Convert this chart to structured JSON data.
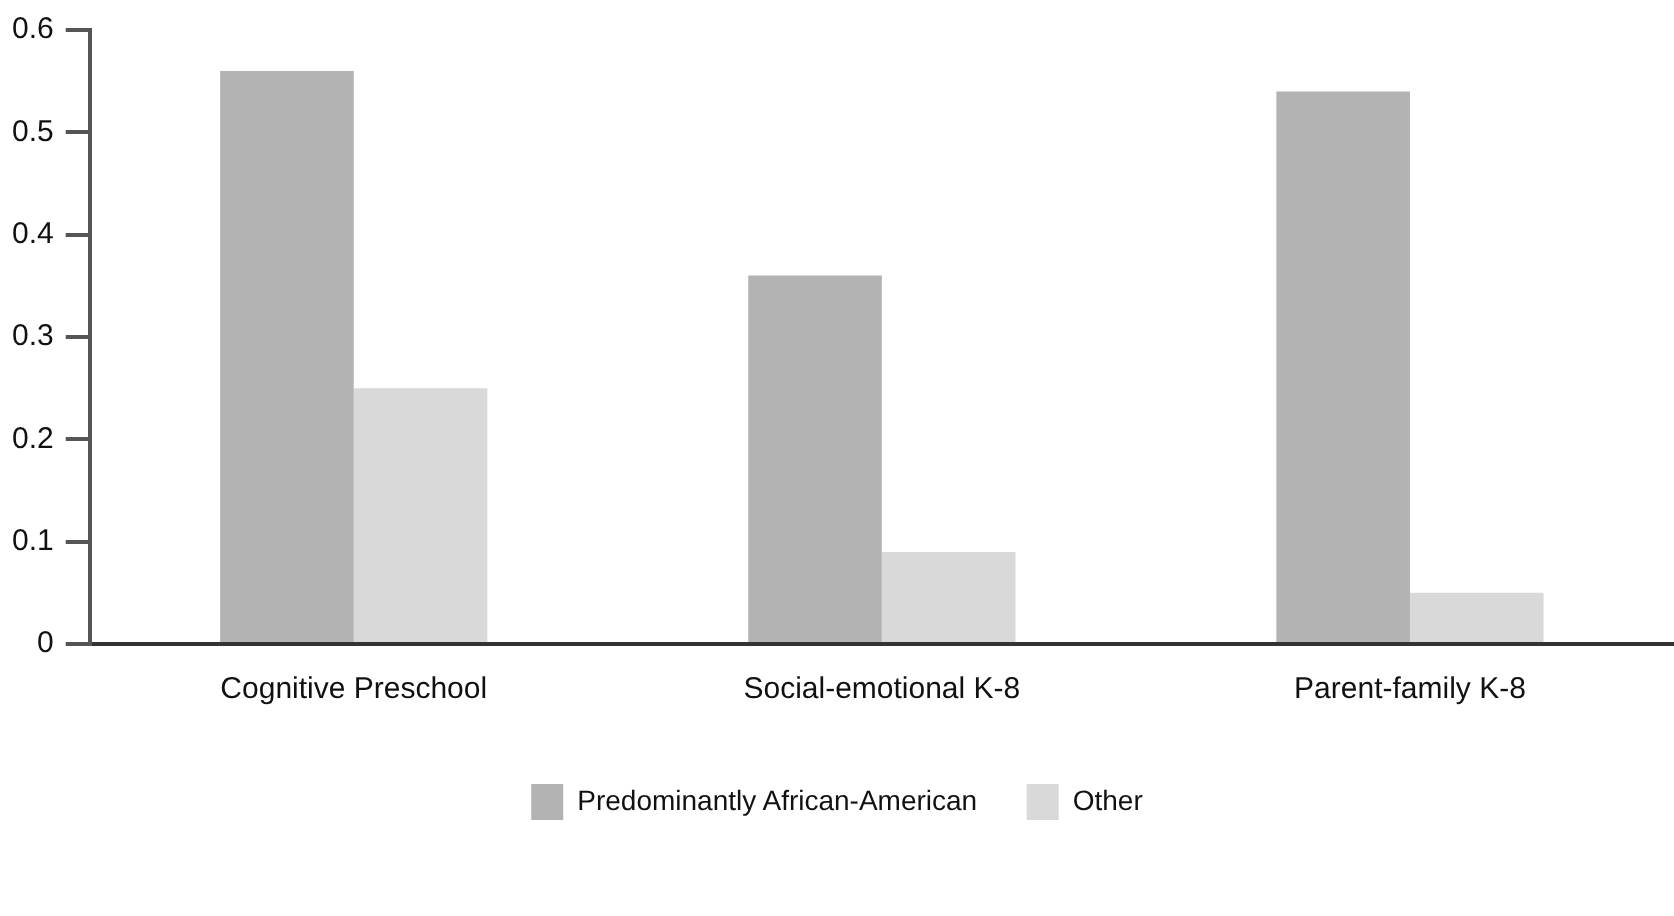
{
  "chart_data": {
    "type": "bar",
    "categories": [
      "Cognitive Preschool",
      "Social-emotional K-8",
      "Parent-family K-8"
    ],
    "series": [
      {
        "name": "Predominantly African-American",
        "color": "#b3b3b3",
        "values": [
          0.56,
          0.36,
          0.54
        ]
      },
      {
        "name": "Other",
        "color": "#d9d9d9",
        "values": [
          0.25,
          0.09,
          0.05
        ]
      }
    ],
    "ylim": [
      0,
      0.6
    ],
    "yticks": [
      0,
      0.1,
      0.2,
      0.3,
      0.4,
      0.5,
      0.6
    ],
    "grid": false,
    "legend": "bottom"
  }
}
